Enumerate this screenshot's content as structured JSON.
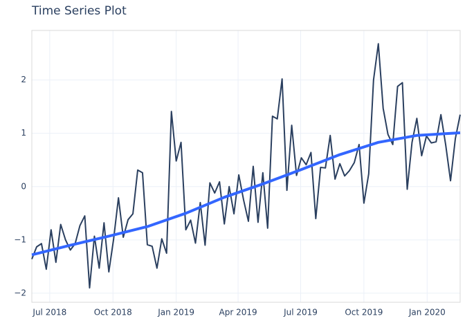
{
  "chart_data": {
    "type": "line",
    "title": "Time Series Plot",
    "x": [
      "2018-06-05",
      "2018-06-12",
      "2018-06-19",
      "2018-06-26",
      "2018-07-03",
      "2018-07-10",
      "2018-07-17",
      "2018-07-24",
      "2018-07-31",
      "2018-08-07",
      "2018-08-14",
      "2018-08-21",
      "2018-08-28",
      "2018-09-04",
      "2018-09-11",
      "2018-09-18",
      "2018-09-25",
      "2018-10-02",
      "2018-10-09",
      "2018-10-16",
      "2018-10-23",
      "2018-10-30",
      "2018-11-06",
      "2018-11-13",
      "2018-11-20",
      "2018-11-27",
      "2018-12-04",
      "2018-12-11",
      "2018-12-18",
      "2018-12-25",
      "2019-01-01",
      "2019-01-08",
      "2019-01-15",
      "2019-01-22",
      "2019-01-29",
      "2019-02-05",
      "2019-02-12",
      "2019-02-19",
      "2019-02-26",
      "2019-03-05",
      "2019-03-12",
      "2019-03-19",
      "2019-03-26",
      "2019-04-02",
      "2019-04-09",
      "2019-04-16",
      "2019-04-23",
      "2019-04-30",
      "2019-05-07",
      "2019-05-14",
      "2019-05-21",
      "2019-05-28",
      "2019-06-04",
      "2019-06-11",
      "2019-06-18",
      "2019-06-25",
      "2019-07-02",
      "2019-07-09",
      "2019-07-16",
      "2019-07-23",
      "2019-07-30",
      "2019-08-06",
      "2019-08-13",
      "2019-08-20",
      "2019-08-27",
      "2019-09-03",
      "2019-09-10",
      "2019-09-17",
      "2019-09-24",
      "2019-10-01",
      "2019-10-08",
      "2019-10-15",
      "2019-10-22",
      "2019-10-29",
      "2019-11-05",
      "2019-11-12",
      "2019-11-19",
      "2019-11-26",
      "2019-12-03",
      "2019-12-10",
      "2019-12-17",
      "2019-12-24",
      "2019-12-31",
      "2020-01-07",
      "2020-01-14",
      "2020-01-21",
      "2020-01-28",
      "2020-02-04",
      "2020-02-11",
      "2020-02-18"
    ],
    "series": [
      {
        "color": "#2a3f5f",
        "values": [
          -1.36,
          -1.13,
          -1.07,
          -1.55,
          -0.81,
          -1.42,
          -0.71,
          -1.0,
          -1.19,
          -1.07,
          -0.73,
          -0.55,
          -1.9,
          -0.93,
          -1.53,
          -0.68,
          -1.6,
          -0.98,
          -0.21,
          -0.95,
          -0.62,
          -0.51,
          0.31,
          0.26,
          -1.09,
          -1.12,
          -1.53,
          -0.98,
          -1.25,
          1.41,
          0.48,
          0.83,
          -0.81,
          -0.63,
          -1.06,
          -0.3,
          -1.1,
          0.07,
          -0.12,
          0.09,
          -0.7,
          0.0,
          -0.51,
          0.22,
          -0.25,
          -0.65,
          0.38,
          -0.67,
          0.26,
          -0.78,
          1.32,
          1.27,
          2.02,
          -0.07,
          1.15,
          0.21,
          0.54,
          0.41,
          0.64,
          -0.6,
          0.36,
          0.35,
          0.96,
          0.14,
          0.43,
          0.2,
          0.3,
          0.45,
          0.79,
          -0.31,
          0.24,
          2.0,
          2.68,
          1.47,
          0.98,
          0.79,
          1.88,
          1.95,
          -0.05,
          0.83,
          1.28,
          0.58,
          0.95,
          0.82,
          0.84,
          1.35,
          0.78,
          0.11,
          0.9,
          1.35
        ]
      },
      {
        "color": "#3366ff",
        "x": [
          "2018-06-05",
          "2018-07-31",
          "2018-09-25",
          "2018-11-20",
          "2019-01-15",
          "2019-03-12",
          "2019-05-07",
          "2019-07-02",
          "2019-08-27",
          "2019-10-22",
          "2019-12-17",
          "2020-02-18"
        ],
        "values": [
          -1.28,
          -1.1,
          -0.93,
          -0.75,
          -0.5,
          -0.2,
          0.05,
          0.32,
          0.6,
          0.83,
          0.96,
          1.01
        ]
      }
    ],
    "xlim": [
      "2018-06-05",
      "2020-02-18"
    ],
    "xticks": [
      {
        "value": "2018-07-01",
        "label": "Jul 2018"
      },
      {
        "value": "2018-10-01",
        "label": "Oct 2018"
      },
      {
        "value": "2019-01-01",
        "label": "Jan 2019"
      },
      {
        "value": "2019-04-01",
        "label": "Apr 2019"
      },
      {
        "value": "2019-07-01",
        "label": "Jul 2019"
      },
      {
        "value": "2019-10-01",
        "label": "Oct 2019"
      },
      {
        "value": "2020-01-01",
        "label": "Jan 2020"
      }
    ],
    "ylim": [
      -2.17,
      2.93
    ],
    "yticks": [
      {
        "value": -2,
        "label": "−2"
      },
      {
        "value": -1,
        "label": "−1"
      },
      0,
      1,
      2
    ],
    "grid": true
  }
}
